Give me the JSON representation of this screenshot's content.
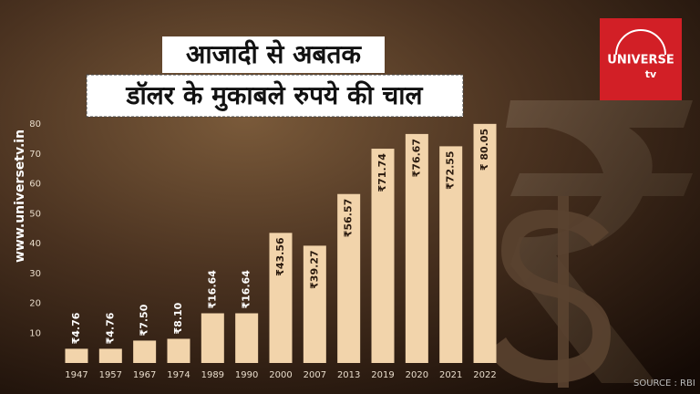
{
  "chart_data": {
    "type": "bar",
    "title": "आजादी से अबतक",
    "subtitle": "डॉलर के मुकाबले रुपये की चाल",
    "website": "www.universetv.in",
    "logo": {
      "name": "UNIVERSE",
      "suffix": "tv"
    },
    "source": "SOURCE : RBI",
    "categories": [
      "1947",
      "1957",
      "1967",
      "1974",
      "1989",
      "1990",
      "2000",
      "2007",
      "2013",
      "2019",
      "2020",
      "2021",
      "2022"
    ],
    "values": [
      4.76,
      4.76,
      7.5,
      8.1,
      16.64,
      16.64,
      43.56,
      39.27,
      56.57,
      71.74,
      76.67,
      72.55,
      80.05
    ],
    "value_labels": [
      "₹4.76",
      "₹4.76",
      "₹7.50",
      "₹8.10",
      "₹16.64",
      "₹16.64",
      "₹43.56",
      "₹39.27",
      "₹56.57",
      "₹71.74",
      "₹76.67",
      "₹72.55",
      "₹ 80.05"
    ],
    "color": "#f2d4ab",
    "ylim": [
      0,
      80
    ],
    "yticks": [
      10,
      20,
      30,
      40,
      50,
      60,
      70,
      80
    ],
    "grid": false
  }
}
